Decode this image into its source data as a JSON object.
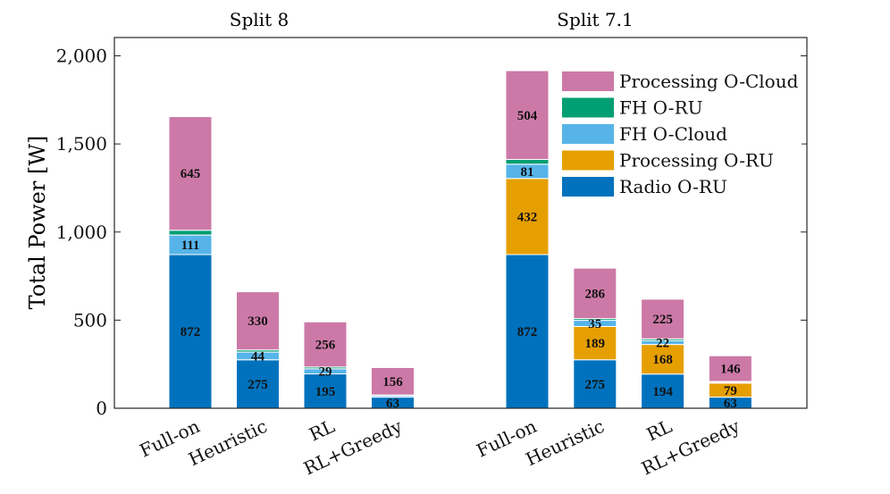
{
  "chart_data": {
    "type": "bar",
    "stacked": true,
    "ylabel": "Total Power [W]",
    "ylim": [
      0,
      2000
    ],
    "yticks": [
      0,
      500,
      1000,
      1500,
      2000
    ],
    "ytick_labels": [
      "0",
      "500",
      "1,000",
      "1,500",
      "2,000"
    ],
    "groups": [
      {
        "title": "Split 8",
        "categories": [
          "Full-on",
          "Heuristic",
          "RL",
          "RL+Greedy"
        ]
      },
      {
        "title": "Split 7.1",
        "categories": [
          "Full-on",
          "Heuristic",
          "RL",
          "RL+Greedy"
        ]
      }
    ],
    "series": [
      {
        "name": "Radio O-RU",
        "color": "#0072BD",
        "values": [
          872,
          275,
          195,
          63,
          872,
          275,
          194,
          63
        ],
        "labels": [
          "872",
          "275",
          "195",
          "63",
          "872",
          "275",
          "194",
          "63"
        ]
      },
      {
        "name": "Processing O-RU",
        "color": "#E69F00",
        "values": [
          0,
          0,
          0,
          0,
          432,
          189,
          168,
          79
        ],
        "labels": [
          "",
          "",
          "",
          "",
          "432",
          "189",
          "168",
          "79"
        ]
      },
      {
        "name": "FH O-Cloud",
        "color": "#56B4E9",
        "values": [
          111,
          44,
          29,
          8,
          81,
          35,
          22,
          6
        ],
        "labels": [
          "111",
          "44",
          "29",
          "",
          "81",
          "35",
          "22",
          ""
        ]
      },
      {
        "name": "FH O-RU",
        "color": "#009E73",
        "values": [
          27,
          12,
          10,
          4,
          27,
          10,
          10,
          4
        ],
        "labels": [
          "",
          "",
          "",
          "",
          "",
          "",
          "",
          ""
        ]
      },
      {
        "name": "Processing O-Cloud",
        "color": "#CC79A7",
        "values": [
          645,
          330,
          256,
          156,
          504,
          286,
          225,
          146
        ],
        "labels": [
          "645",
          "330",
          "256",
          "156",
          "504",
          "286",
          "225",
          "146"
        ]
      }
    ],
    "legend_order": [
      "Processing O-Cloud",
      "FH O-RU",
      "FH O-Cloud",
      "Processing O-RU",
      "Radio O-RU"
    ],
    "legend_position": "top-right",
    "grid": false
  }
}
